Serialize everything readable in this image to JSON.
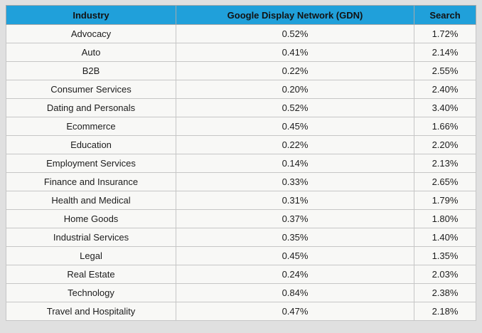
{
  "page": {
    "background_color": "#e0e0e0",
    "header_background_color": "#20a0da",
    "cell_background_color": "#f8f8f6",
    "outer_border_color": "#a9a9a9",
    "grid_line_color": "#c6c6c6",
    "text_color": "#1c1c1c"
  },
  "chart_data": {
    "type": "table",
    "title": "",
    "columns": [
      "Industry",
      "Google Display Network (GDN)",
      "Search"
    ],
    "rows": [
      [
        "Advocacy",
        "0.52%",
        "1.72%"
      ],
      [
        "Auto",
        "0.41%",
        "2.14%"
      ],
      [
        "B2B",
        "0.22%",
        "2.55%"
      ],
      [
        "Consumer Services",
        "0.20%",
        "2.40%"
      ],
      [
        "Dating and Personals",
        "0.52%",
        "3.40%"
      ],
      [
        "Ecommerce",
        "0.45%",
        "1.66%"
      ],
      [
        "Education",
        "0.22%",
        "2.20%"
      ],
      [
        "Employment Services",
        "0.14%",
        "2.13%"
      ],
      [
        "Finance and Insurance",
        "0.33%",
        "2.65%"
      ],
      [
        "Health and Medical",
        "0.31%",
        "1.79%"
      ],
      [
        "Home Goods",
        "0.37%",
        "1.80%"
      ],
      [
        "Industrial Services",
        "0.35%",
        "1.40%"
      ],
      [
        "Legal",
        "0.45%",
        "1.35%"
      ],
      [
        "Real Estate",
        "0.24%",
        "2.03%"
      ],
      [
        "Technology",
        "0.84%",
        "2.38%"
      ],
      [
        "Travel and Hospitality",
        "0.47%",
        "2.18%"
      ]
    ],
    "categories": [
      "Advocacy",
      "Auto",
      "B2B",
      "Consumer Services",
      "Dating and Personals",
      "Ecommerce",
      "Education",
      "Employment Services",
      "Finance and Insurance",
      "Health and Medical",
      "Home Goods",
      "Industrial Services",
      "Legal",
      "Real Estate",
      "Technology",
      "Travel and Hospitality"
    ],
    "series": [
      {
        "name": "Google Display Network (GDN)",
        "unit": "%",
        "values": [
          0.52,
          0.41,
          0.22,
          0.2,
          0.52,
          0.45,
          0.22,
          0.14,
          0.33,
          0.31,
          0.37,
          0.35,
          0.45,
          0.24,
          0.84,
          0.47
        ]
      },
      {
        "name": "Search",
        "unit": "%",
        "values": [
          1.72,
          2.14,
          2.55,
          2.4,
          3.4,
          1.66,
          2.2,
          2.13,
          2.65,
          1.79,
          1.8,
          1.4,
          1.35,
          2.03,
          2.38,
          2.18
        ]
      }
    ]
  }
}
